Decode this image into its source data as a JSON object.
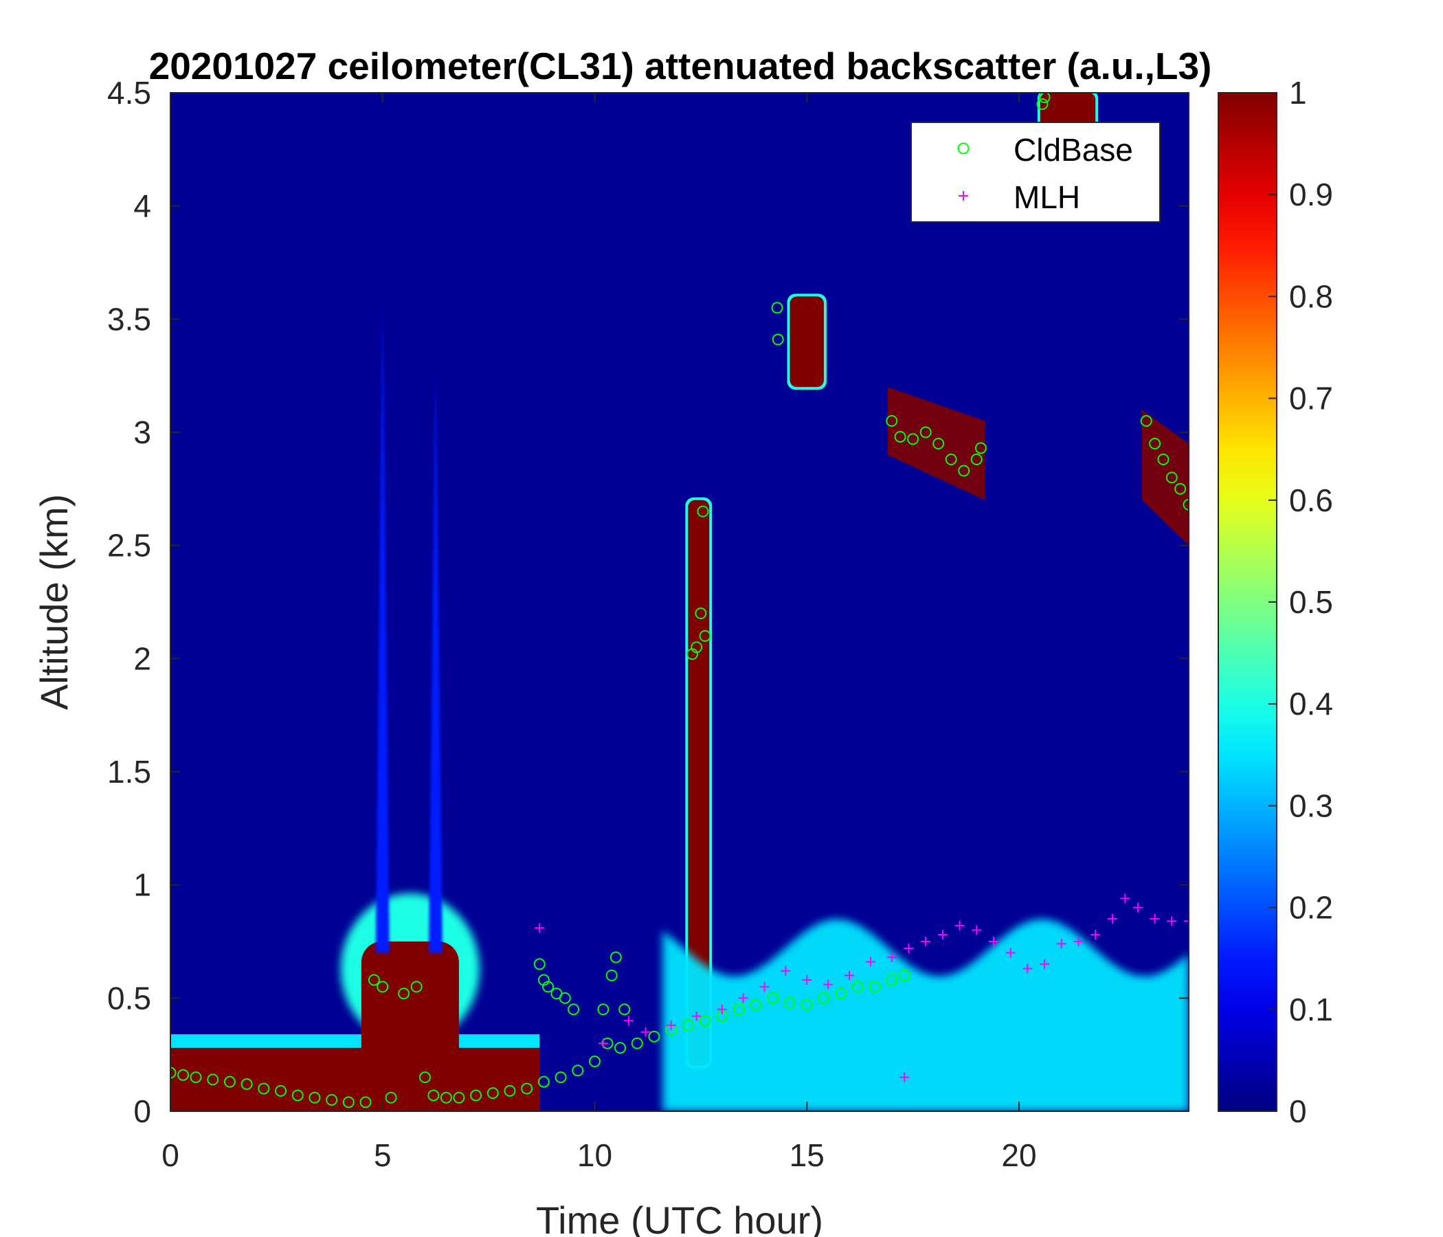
{
  "chart_data": {
    "type": "heatmap",
    "title": "20201027 ceilometer(CL31) attenuated backscatter (a.u.,L3)",
    "xlabel": "Time (UTC hour)",
    "ylabel": "Altitude (km)",
    "xlim": [
      0,
      24
    ],
    "ylim": [
      0,
      4.5
    ],
    "xticks": [
      0,
      5,
      10,
      15,
      20
    ],
    "xtick_labels": [
      "0",
      "5",
      "10",
      "15",
      "20"
    ],
    "yticks": [
      0,
      0.5,
      1,
      1.5,
      2,
      2.5,
      3,
      3.5,
      4,
      4.5
    ],
    "ytick_labels": [
      "0",
      "0.5",
      "1",
      "1.5",
      "2",
      "2.5",
      "3",
      "3.5",
      "4",
      "4.5"
    ],
    "colorbar": {
      "colormap": "jet",
      "range": [
        0,
        1
      ],
      "ticks": [
        0,
        0.1,
        0.2,
        0.3,
        0.4,
        0.5,
        0.6,
        0.7,
        0.8,
        0.9,
        1
      ],
      "tick_labels": [
        "0",
        "0.1",
        "0.2",
        "0.3",
        "0.4",
        "0.5",
        "0.6",
        "0.7",
        "0.8",
        "0.9",
        "1"
      ]
    },
    "legend": {
      "position": "top-right",
      "entries": [
        {
          "label": "CldBase",
          "marker": "circle",
          "color": "#00ff00"
        },
        {
          "label": "MLH",
          "marker": "plus",
          "color": "#ff00ff"
        }
      ]
    },
    "background_value": 0.02,
    "features": [
      {
        "kind": "surface_layer",
        "t0": 0,
        "t1": 8.7,
        "top": 0.28,
        "value": 1.0
      },
      {
        "kind": "plume",
        "t0": 4.5,
        "t1": 6.8,
        "top": 0.75,
        "value": 1.0
      },
      {
        "kind": "thin_plume",
        "t": 5.0,
        "top": 3.6,
        "value": 0.15
      },
      {
        "kind": "thin_plume",
        "t": 6.25,
        "top": 3.3,
        "value": 0.15
      },
      {
        "kind": "cloud",
        "t0": 14.6,
        "t1": 15.4,
        "bottom": 3.2,
        "top": 3.6,
        "value": 1.0
      },
      {
        "kind": "cloud",
        "t0": 12.2,
        "t1": 12.7,
        "bottom": 0.2,
        "top": 2.7,
        "value": 1.0
      },
      {
        "kind": "cloud_band",
        "t0": 16.9,
        "t1": 19.2,
        "bottom": 2.7,
        "top": 3.2,
        "value": 1.0
      },
      {
        "kind": "cloud_band",
        "t0": 22.9,
        "t1": 24,
        "bottom": 2.5,
        "top": 3.1,
        "value": 1.0
      },
      {
        "kind": "cloud",
        "t0": 20.5,
        "t1": 21.8,
        "bottom": 4.0,
        "top": 4.5,
        "value": 1.0
      },
      {
        "kind": "aerosol_layer",
        "t0": 11.6,
        "t1": 24,
        "top": 0.85,
        "value": 0.35
      }
    ],
    "series": [
      {
        "name": "CldBase",
        "marker": "circle",
        "color": "#00ff00",
        "x": [
          0,
          0.3,
          0.6,
          1,
          1.4,
          1.8,
          2.2,
          2.6,
          3,
          3.4,
          3.8,
          4.2,
          4.6,
          4.8,
          5.0,
          5.2,
          5.5,
          5.8,
          6.0,
          6.2,
          6.5,
          6.8,
          7.2,
          7.6,
          8,
          8.4,
          8.8,
          9.2,
          9.6,
          10,
          10.3,
          10.6,
          11,
          11.4,
          11.8,
          12.2,
          12.6,
          13,
          13.4,
          13.8,
          14.2,
          14.6,
          15,
          15.4,
          15.8,
          16.2,
          16.6,
          17,
          17.3,
          8.7,
          8.8,
          8.9,
          9.1,
          9.3,
          9.5,
          10.2,
          10.4,
          10.5,
          10.7,
          12.3,
          12.4,
          12.5,
          12.55,
          12.6,
          14.3,
          14.32,
          17.0,
          17.2,
          17.5,
          17.8,
          18.1,
          18.4,
          18.7,
          19.0,
          19.1,
          23.0,
          23.2,
          23.4,
          23.6,
          23.8,
          24.0,
          20.55,
          20.6
        ],
        "y": [
          0.17,
          0.16,
          0.15,
          0.14,
          0.13,
          0.12,
          0.1,
          0.09,
          0.07,
          0.06,
          0.05,
          0.04,
          0.04,
          0.58,
          0.55,
          0.06,
          0.52,
          0.55,
          0.15,
          0.07,
          0.06,
          0.06,
          0.07,
          0.08,
          0.09,
          0.1,
          0.13,
          0.15,
          0.18,
          0.22,
          0.3,
          0.28,
          0.3,
          0.33,
          0.36,
          0.38,
          0.4,
          0.42,
          0.45,
          0.47,
          0.5,
          0.48,
          0.47,
          0.5,
          0.52,
          0.55,
          0.55,
          0.58,
          0.6,
          0.65,
          0.58,
          0.55,
          0.52,
          0.5,
          0.45,
          0.45,
          0.6,
          0.68,
          0.45,
          2.02,
          2.05,
          2.2,
          2.65,
          2.1,
          3.55,
          3.41,
          3.05,
          2.98,
          2.97,
          3.0,
          2.95,
          2.88,
          2.83,
          2.88,
          2.93,
          3.05,
          2.95,
          2.88,
          2.8,
          2.75,
          2.68,
          4.45,
          4.48
        ]
      },
      {
        "name": "MLH",
        "marker": "plus",
        "color": "#ff00ff",
        "x": [
          8.7,
          10.2,
          10.8,
          11.2,
          11.8,
          12.4,
          13,
          13.5,
          14,
          14.5,
          15,
          15.5,
          16,
          16.5,
          17,
          17.4,
          17.8,
          18.2,
          18.6,
          19,
          19.4,
          19.8,
          20.2,
          20.6,
          21,
          21.4,
          21.8,
          22.2,
          22.5,
          22.8,
          23.2,
          23.6,
          24.0,
          17.3
        ],
        "y": [
          0.81,
          0.3,
          0.4,
          0.35,
          0.38,
          0.42,
          0.45,
          0.5,
          0.55,
          0.62,
          0.58,
          0.56,
          0.6,
          0.66,
          0.68,
          0.72,
          0.75,
          0.78,
          0.82,
          0.8,
          0.75,
          0.7,
          0.63,
          0.65,
          0.74,
          0.75,
          0.78,
          0.85,
          0.94,
          0.9,
          0.85,
          0.84,
          0.84,
          0.15
        ]
      }
    ]
  }
}
